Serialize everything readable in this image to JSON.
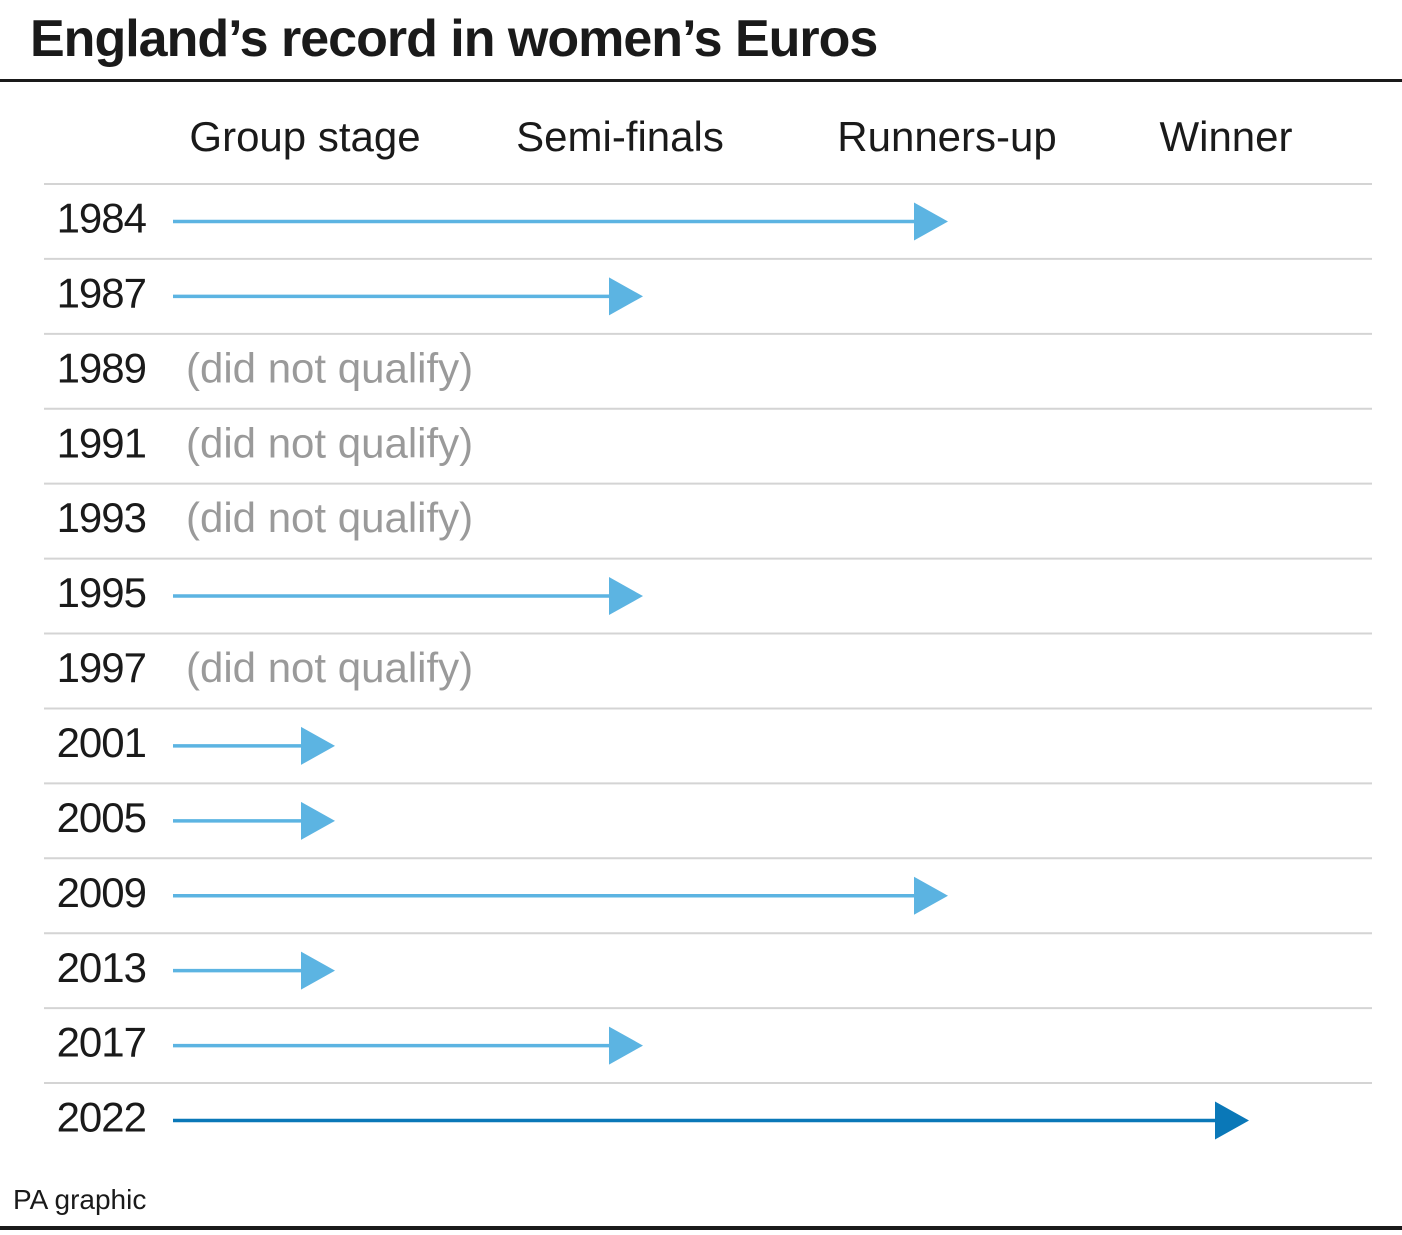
{
  "title": "England’s record in women’s Euros",
  "source": "PA graphic",
  "colors": {
    "arrow": "#5cb4e2",
    "arrow_highlight": "#0a78b8",
    "gridline": "#d4d4d4",
    "dnq_text": "#9a9a9a",
    "text": "#1a1a1a"
  },
  "chart_data": {
    "type": "bar",
    "orientation": "horizontal",
    "stages": [
      "Group stage",
      "Semi-finals",
      "Runners-up",
      "Winner"
    ],
    "dnq_label": "(did not qualify)",
    "rows": [
      {
        "year": "1984",
        "stage": "Runners-up"
      },
      {
        "year": "1987",
        "stage": "Semi-finals"
      },
      {
        "year": "1989",
        "stage": null
      },
      {
        "year": "1991",
        "stage": null
      },
      {
        "year": "1993",
        "stage": null
      },
      {
        "year": "1995",
        "stage": "Semi-finals"
      },
      {
        "year": "1997",
        "stage": null
      },
      {
        "year": "2001",
        "stage": "Group stage"
      },
      {
        "year": "2005",
        "stage": "Group stage"
      },
      {
        "year": "2009",
        "stage": "Runners-up"
      },
      {
        "year": "2013",
        "stage": "Group stage"
      },
      {
        "year": "2017",
        "stage": "Semi-finals"
      },
      {
        "year": "2022",
        "stage": "Winner",
        "highlight": true
      }
    ]
  }
}
